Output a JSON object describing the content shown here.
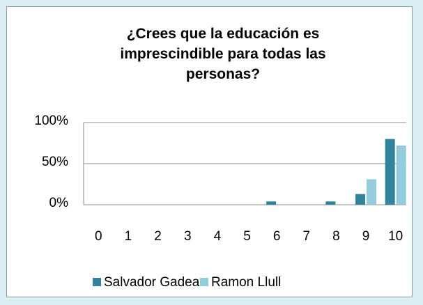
{
  "chart_data": {
    "type": "bar",
    "title": "¿Crees que la educación es imprescindible para todas las personas?",
    "categories": [
      "0",
      "1",
      "2",
      "3",
      "4",
      "5",
      "6",
      "7",
      "8",
      "9",
      "10"
    ],
    "series": [
      {
        "name": "Salvador Gadea",
        "color": "#31849b",
        "values": [
          0,
          0,
          0,
          0,
          0,
          0,
          4,
          0,
          4,
          13,
          80
        ]
      },
      {
        "name": "Ramon Llull",
        "color": "#93cddd",
        "values": [
          0,
          0,
          0,
          0,
          0,
          0,
          0,
          0,
          0,
          31,
          72
        ]
      }
    ],
    "ylim": [
      0,
      100
    ],
    "yticks": [
      {
        "value": 0,
        "label": "0%"
      },
      {
        "value": 50,
        "label": "50%"
      },
      {
        "value": 100,
        "label": "100%"
      }
    ],
    "grid": true,
    "legend": "bottom"
  }
}
